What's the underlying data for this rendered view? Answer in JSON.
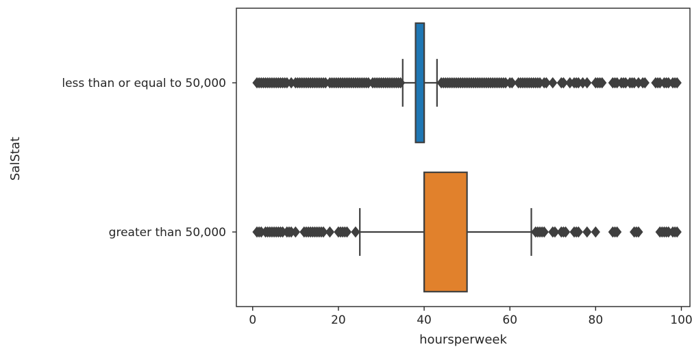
{
  "chart_data": {
    "type": "boxplot",
    "orientation": "horizontal",
    "title": "",
    "xlabel": "hoursperweek",
    "ylabel": "SalStat",
    "xlim": [
      -3.8,
      102
    ],
    "x_ticks": [
      0,
      20,
      40,
      60,
      80,
      100
    ],
    "grid": false,
    "categories": [
      "less than or equal to 50,000",
      "greater than 50,000"
    ],
    "series": [
      {
        "category": "less than or equal to 50,000",
        "color": "#1f77b4",
        "whisker_low": 35,
        "q1": 38,
        "median": 40,
        "q3": 40,
        "whisker_high": 43,
        "outliers": [
          1,
          1.5,
          2,
          2.5,
          3,
          3.5,
          4,
          4.5,
          5,
          5.5,
          6,
          6.5,
          7,
          7.5,
          8,
          9,
          10,
          10.5,
          11,
          11.5,
          12,
          12.5,
          13,
          13.5,
          14,
          14.5,
          15,
          15.5,
          16,
          16.5,
          17,
          18,
          18.5,
          19,
          19.5,
          20,
          20.5,
          21,
          21.5,
          22,
          22.5,
          23,
          23.5,
          24,
          24.5,
          25,
          25.5,
          26,
          26.5,
          27,
          28,
          28.5,
          29,
          29.5,
          30,
          30.5,
          31,
          31.5,
          32,
          32.5,
          33,
          33.5,
          34,
          34.5,
          44,
          44.5,
          45,
          45.5,
          46,
          46.5,
          47,
          47.5,
          48,
          48.5,
          49,
          49.5,
          50,
          50.5,
          51,
          51.5,
          52,
          52.5,
          53,
          53.5,
          54,
          54.5,
          55,
          55.5,
          56,
          56.5,
          57,
          57.5,
          58,
          58.5,
          59,
          60,
          60.5,
          62,
          62.5,
          63,
          63.5,
          64,
          64.5,
          65,
          65.5,
          66,
          66.5,
          67,
          68,
          68.5,
          70,
          72,
          72.5,
          74,
          75,
          75.5,
          76,
          77,
          78,
          80,
          80.5,
          81,
          81.5,
          84,
          84.5,
          85,
          86,
          86.5,
          87,
          88,
          88.5,
          89,
          90,
          91,
          91.5,
          94,
          94.5,
          95,
          96,
          96.5,
          97,
          98,
          98.5,
          99
        ]
      },
      {
        "category": "greater than 50,000",
        "color": "#e1812c",
        "whisker_low": 25,
        "q1": 40,
        "median": 40,
        "q3": 50,
        "whisker_high": 65,
        "outliers": [
          1,
          1.5,
          2,
          3,
          3.5,
          4,
          4.5,
          5,
          5.5,
          6,
          6.5,
          7,
          8,
          8.5,
          9,
          10,
          12,
          12.5,
          13,
          13.5,
          14,
          14.5,
          15,
          15.5,
          16,
          16.5,
          18,
          20,
          20.5,
          21,
          21.5,
          22,
          24,
          66,
          66.5,
          67,
          67.5,
          68,
          70,
          70.5,
          72,
          72.5,
          73,
          75,
          75.5,
          76,
          78,
          80,
          84,
          84.5,
          85,
          89,
          89.5,
          90,
          95,
          95.5,
          96,
          96.5,
          97,
          98,
          98.5,
          99
        ]
      }
    ]
  }
}
